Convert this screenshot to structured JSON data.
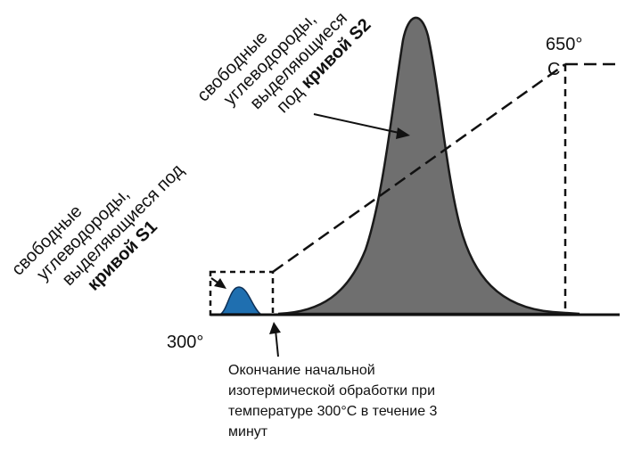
{
  "colors": {
    "s1_fill": "#1f6fb0",
    "s2_fill": "#6f6f6f",
    "line": "#111111",
    "background": "#ffffff"
  },
  "temperatures": {
    "start": "300°",
    "end": "650°",
    "end_unit": "C"
  },
  "labels": {
    "s2": {
      "line1": "свободные",
      "line2": "углеводороды,",
      "line3": "выделяющиеся",
      "line4_plain": "под ",
      "line4_bold": "кривой S2"
    },
    "s1": {
      "line1": "свободные",
      "line2": "углеводороды,",
      "line3": "выделяющиеся под",
      "line4_bold": "кривой S1"
    }
  },
  "caption": {
    "line1": "Окончание начальной",
    "line2": "изотермической обработки при",
    "line3": "температуре 300°С в течение 3",
    "line4": "минут"
  }
}
